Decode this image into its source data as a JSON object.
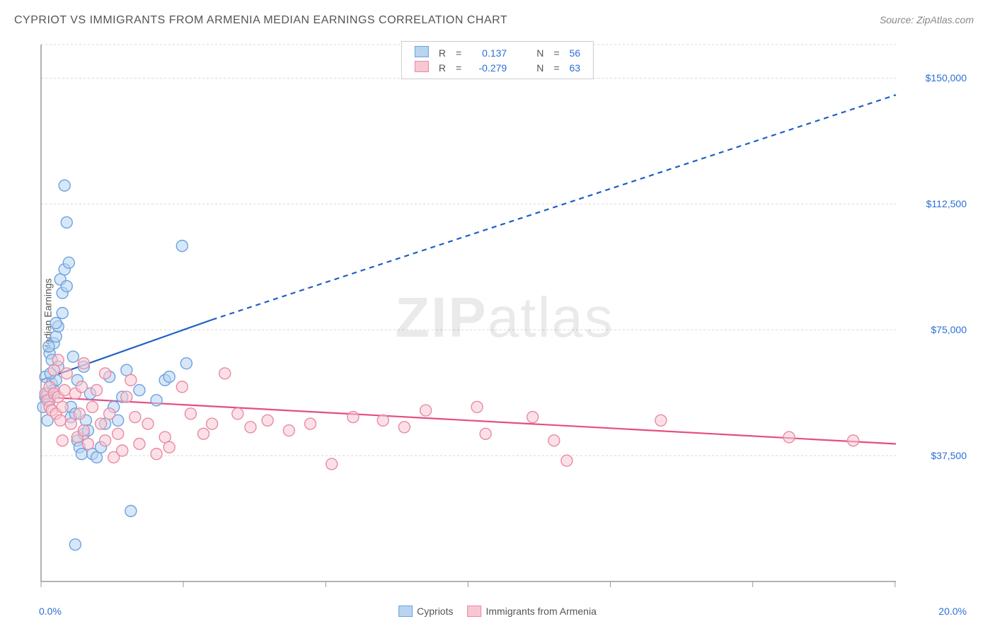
{
  "title": "CYPRIOT VS IMMIGRANTS FROM ARMENIA MEDIAN EARNINGS CORRELATION CHART",
  "source": "Source: ZipAtlas.com",
  "ylabel": "Median Earnings",
  "watermark_a": "ZIP",
  "watermark_b": "atlas",
  "chart": {
    "type": "scatter",
    "xlim": [
      0,
      20
    ],
    "ylim": [
      0,
      160000
    ],
    "xtick_step": 3.33,
    "ytick_values": [
      37500,
      75000,
      112500,
      150000
    ],
    "ytick_labels": [
      "$37,500",
      "$75,000",
      "$112,500",
      "$150,000"
    ],
    "x_axis_start_label": "0.0%",
    "x_axis_end_label": "20.0%",
    "grid_color": "#d8d8d8",
    "axis_color": "#999999",
    "background": "#ffffff",
    "marker_radius": 8,
    "marker_stroke_width": 1.4,
    "trend_line_width": 2.2,
    "series": [
      {
        "name": "Cypriots",
        "fill": "#b8d4f0",
        "stroke": "#6aa3e0",
        "fill_opacity": 0.55,
        "line_color": "#1f5fc4",
        "R": "0.137",
        "N": "56",
        "trend": {
          "x1": 0,
          "y1": 60000,
          "x2_solid": 4,
          "y2_solid": 78000,
          "x2_dash": 20,
          "y2_dash": 145000
        },
        "points": [
          [
            0.05,
            52000
          ],
          [
            0.1,
            61000
          ],
          [
            0.1,
            55000
          ],
          [
            0.15,
            48000
          ],
          [
            0.15,
            56000
          ],
          [
            0.2,
            54000
          ],
          [
            0.2,
            68000
          ],
          [
            0.25,
            59000
          ],
          [
            0.25,
            66000
          ],
          [
            0.3,
            57000
          ],
          [
            0.3,
            71000
          ],
          [
            0.35,
            73000
          ],
          [
            0.35,
            60000
          ],
          [
            0.4,
            64000
          ],
          [
            0.4,
            76000
          ],
          [
            0.45,
            90000
          ],
          [
            0.5,
            86000
          ],
          [
            0.55,
            93000
          ],
          [
            0.55,
            118000
          ],
          [
            0.6,
            88000
          ],
          [
            0.6,
            107000
          ],
          [
            0.65,
            95000
          ],
          [
            0.7,
            49000
          ],
          [
            0.7,
            52000
          ],
          [
            0.75,
            67000
          ],
          [
            0.8,
            50000
          ],
          [
            0.85,
            42000
          ],
          [
            0.85,
            60000
          ],
          [
            0.9,
            40000
          ],
          [
            0.95,
            38000
          ],
          [
            1.0,
            44000
          ],
          [
            1.0,
            64000
          ],
          [
            1.05,
            48000
          ],
          [
            1.1,
            45000
          ],
          [
            1.15,
            56000
          ],
          [
            1.2,
            38000
          ],
          [
            1.3,
            37000
          ],
          [
            1.4,
            40000
          ],
          [
            1.5,
            47000
          ],
          [
            1.6,
            61000
          ],
          [
            1.7,
            52000
          ],
          [
            1.8,
            48000
          ],
          [
            1.9,
            55000
          ],
          [
            2.0,
            63000
          ],
          [
            2.1,
            21000
          ],
          [
            2.3,
            57000
          ],
          [
            2.7,
            54000
          ],
          [
            2.9,
            60000
          ],
          [
            3.0,
            61000
          ],
          [
            3.3,
            100000
          ],
          [
            3.4,
            65000
          ],
          [
            0.8,
            11000
          ],
          [
            0.35,
            77000
          ],
          [
            0.5,
            80000
          ],
          [
            0.22,
            62000
          ],
          [
            0.18,
            70000
          ]
        ]
      },
      {
        "name": "Immigrants from Armenia",
        "fill": "#f7c8d3",
        "stroke": "#e98aa2",
        "fill_opacity": 0.55,
        "line_color": "#e64d80",
        "R": "-0.279",
        "N": "63",
        "trend": {
          "x1": 0,
          "y1": 55000,
          "x2_solid": 20,
          "y2_solid": 41000
        },
        "points": [
          [
            0.1,
            56000
          ],
          [
            0.15,
            54000
          ],
          [
            0.2,
            52000
          ],
          [
            0.2,
            58000
          ],
          [
            0.25,
            51000
          ],
          [
            0.3,
            56000
          ],
          [
            0.3,
            63000
          ],
          [
            0.35,
            50000
          ],
          [
            0.4,
            55000
          ],
          [
            0.4,
            66000
          ],
          [
            0.45,
            48000
          ],
          [
            0.5,
            42000
          ],
          [
            0.5,
            52000
          ],
          [
            0.55,
            57000
          ],
          [
            0.6,
            62000
          ],
          [
            0.7,
            47000
          ],
          [
            0.8,
            56000
          ],
          [
            0.85,
            43000
          ],
          [
            0.9,
            50000
          ],
          [
            0.95,
            58000
          ],
          [
            1.0,
            45000
          ],
          [
            1.0,
            65000
          ],
          [
            1.1,
            41000
          ],
          [
            1.2,
            52000
          ],
          [
            1.3,
            57000
          ],
          [
            1.4,
            47000
          ],
          [
            1.5,
            42000
          ],
          [
            1.5,
            62000
          ],
          [
            1.6,
            50000
          ],
          [
            1.7,
            37000
          ],
          [
            1.8,
            44000
          ],
          [
            1.9,
            39000
          ],
          [
            2.0,
            55000
          ],
          [
            2.1,
            60000
          ],
          [
            2.2,
            49000
          ],
          [
            2.3,
            41000
          ],
          [
            2.5,
            47000
          ],
          [
            2.7,
            38000
          ],
          [
            2.9,
            43000
          ],
          [
            3.0,
            40000
          ],
          [
            3.3,
            58000
          ],
          [
            3.5,
            50000
          ],
          [
            3.8,
            44000
          ],
          [
            4.0,
            47000
          ],
          [
            4.3,
            62000
          ],
          [
            4.6,
            50000
          ],
          [
            4.9,
            46000
          ],
          [
            5.3,
            48000
          ],
          [
            5.8,
            45000
          ],
          [
            6.3,
            47000
          ],
          [
            6.8,
            35000
          ],
          [
            7.3,
            49000
          ],
          [
            8.0,
            48000
          ],
          [
            8.5,
            46000
          ],
          [
            9.0,
            51000
          ],
          [
            10.2,
            52000
          ],
          [
            10.4,
            44000
          ],
          [
            11.5,
            49000
          ],
          [
            12.0,
            42000
          ],
          [
            12.3,
            36000
          ],
          [
            14.5,
            48000
          ],
          [
            17.5,
            43000
          ],
          [
            19.0,
            42000
          ]
        ]
      }
    ]
  },
  "legend_bottom": [
    {
      "label": "Cypriots",
      "fill": "#b8d4f0",
      "stroke": "#6aa3e0"
    },
    {
      "label": "Immigrants from Armenia",
      "fill": "#f7c8d3",
      "stroke": "#e98aa2"
    }
  ],
  "legend_top_labels": {
    "R": "R",
    "N": "N",
    "eq": "="
  }
}
